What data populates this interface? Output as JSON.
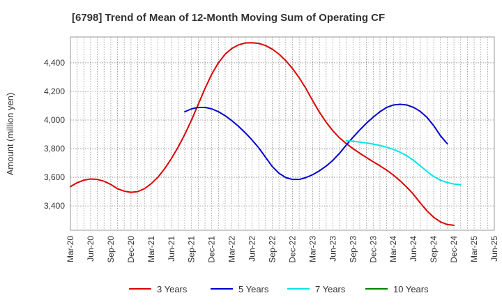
{
  "chart_data": {
    "type": "line",
    "title": "[6798]  Trend of Mean of 12-Month Moving Sum of Operating CF",
    "xlabel": "",
    "ylabel": "Amount (million yen)",
    "ylim": [
      3230,
      4580
    ],
    "y_ticks": [
      3400,
      3600,
      3800,
      4000,
      4200,
      4400
    ],
    "y_tick_labels": [
      "3,400",
      "3,600",
      "3,800",
      "4,000",
      "4,200",
      "4,400"
    ],
    "x_start": "Mar-20",
    "x_end": "Jun-25",
    "x_tick_labels": [
      "Mar-20",
      "Jun-20",
      "Sep-20",
      "Dec-20",
      "Mar-21",
      "Jun-21",
      "Sep-21",
      "Dec-21",
      "Mar-22",
      "Jun-22",
      "Sep-22",
      "Dec-22",
      "Mar-23",
      "Jun-23",
      "Sep-23",
      "Dec-23",
      "Mar-24",
      "Jun-24",
      "Sep-24",
      "Dec-24",
      "Mar-25",
      "Jun-25"
    ],
    "grid": true,
    "legend_position": "bottom",
    "series": [
      {
        "name": "3 Years",
        "color": "#dd0000",
        "start": "Mar-20",
        "values": [
          3535,
          3562,
          3580,
          3588,
          3585,
          3572,
          3550,
          3520,
          3503,
          3495,
          3500,
          3520,
          3555,
          3600,
          3660,
          3730,
          3810,
          3900,
          4000,
          4110,
          4220,
          4320,
          4400,
          4460,
          4500,
          4525,
          4538,
          4540,
          4535,
          4520,
          4495,
          4460,
          4415,
          4360,
          4295,
          4220,
          4135,
          4055,
          3985,
          3925,
          3875,
          3835,
          3800,
          3768,
          3738,
          3708,
          3680,
          3650,
          3615,
          3575,
          3530,
          3480,
          3420,
          3365,
          3320,
          3288,
          3270,
          3265
        ]
      },
      {
        "name": "5 Years",
        "color": "#0000cc",
        "start": "Aug-21",
        "values": [
          4058,
          4078,
          4088,
          4088,
          4078,
          4058,
          4030,
          3995,
          3955,
          3910,
          3860,
          3805,
          3740,
          3675,
          3628,
          3598,
          3585,
          3585,
          3598,
          3618,
          3645,
          3678,
          3718,
          3768,
          3825,
          3880,
          3930,
          3978,
          4020,
          4058,
          4088,
          4105,
          4110,
          4105,
          4088,
          4060,
          4018,
          3960,
          3890,
          3835
        ]
      },
      {
        "name": "7 Years",
        "color": "#00e6e6",
        "start": "Aug-23",
        "values": [
          3855,
          3852,
          3846,
          3840,
          3832,
          3822,
          3810,
          3795,
          3775,
          3750,
          3718,
          3680,
          3640,
          3605,
          3580,
          3563,
          3553,
          3548
        ]
      },
      {
        "name": "10 Years",
        "color": "#008000",
        "start": "Mar-25",
        "values": []
      }
    ]
  }
}
